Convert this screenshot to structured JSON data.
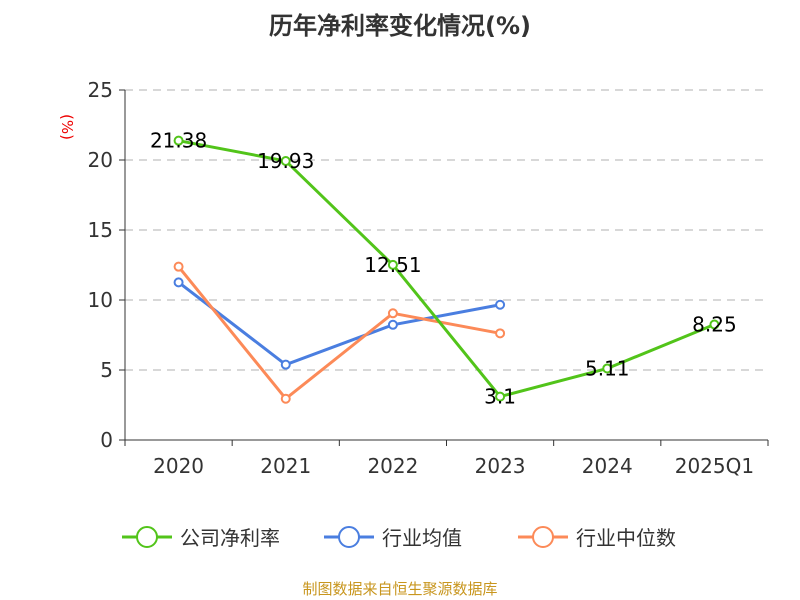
{
  "chart_data": {
    "type": "line",
    "title": "历年净利率变化情况(%)",
    "ylabel": "(%)",
    "xlabel": "",
    "categories": [
      "2020",
      "2021",
      "2022",
      "2023",
      "2024",
      "2025Q1"
    ],
    "ylim": [
      0,
      25
    ],
    "yticks": [
      "0",
      "5",
      "10",
      "15",
      "20",
      "25"
    ],
    "grid": true,
    "legend_position": "bottom",
    "series": [
      {
        "name": "公司净利率",
        "color": "#52c41a",
        "values": [
          21.38,
          19.93,
          12.51,
          3.1,
          5.11,
          8.25
        ],
        "labels": [
          "21.38",
          "19.93",
          "12.51",
          "3.1",
          "5.11",
          "8.25"
        ]
      },
      {
        "name": "行业均值",
        "color": "#4a7ee0",
        "values": [
          11.26,
          5.38,
          8.23,
          9.66,
          null,
          null
        ]
      },
      {
        "name": "行业中位数",
        "color": "#fc8a58",
        "values": [
          12.38,
          2.95,
          9.05,
          7.62,
          null,
          null
        ]
      }
    ],
    "source": "制图数据来自恒生聚源数据库"
  }
}
